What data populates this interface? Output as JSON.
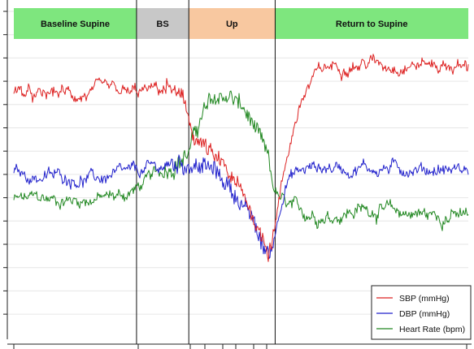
{
  "chart_data": {
    "type": "line",
    "title": "",
    "xlabel": "",
    "ylabel": "",
    "xlim": [
      0,
      100
    ],
    "ylim": [
      30,
      175
    ],
    "grid": true,
    "legend_position": "bottom-right",
    "phases": [
      {
        "label": "Baseline Supine",
        "start": 0,
        "end": 27,
        "color": "#7ee67e"
      },
      {
        "label": "BS",
        "start": 27,
        "end": 38.5,
        "color": "#c8c8c8"
      },
      {
        "label": "Up",
        "start": 38.5,
        "end": 57.5,
        "color": "#f8c8a0"
      },
      {
        "label": "Return to Supine",
        "start": 57.5,
        "end": 100,
        "color": "#7ee67e"
      }
    ],
    "phase_boundaries": [
      27,
      38.5,
      57.5
    ],
    "series": [
      {
        "name": "SBP (mmHg)",
        "color": "#dd2222",
        "x": [
          0,
          5,
          10,
          15,
          20,
          25,
          28,
          31,
          34,
          36,
          37.5,
          38.5,
          40,
          42,
          44,
          46,
          48,
          50,
          52,
          53.5,
          55,
          56,
          57,
          58,
          59,
          60,
          62,
          64,
          66,
          68,
          70,
          72,
          74,
          76,
          78,
          80,
          85,
          90,
          95,
          100
        ],
        "values": [
          150,
          146,
          149,
          147,
          150,
          148,
          149,
          150,
          151,
          148,
          142,
          135,
          126,
          122,
          116,
          112,
          106,
          99,
          92,
          84,
          76,
          72,
          80,
          92,
          104,
          116,
          136,
          148,
          156,
          160,
          162,
          162,
          163,
          162,
          164,
          163,
          162,
          163,
          162,
          161
        ]
      },
      {
        "name": "DBP (mmHg)",
        "color": "#2222cc",
        "x": [
          0,
          5,
          10,
          15,
          20,
          25,
          28,
          31,
          34,
          36,
          38.5,
          40,
          42,
          44,
          46,
          48,
          50,
          52,
          53.5,
          55,
          56,
          57,
          58,
          59,
          60,
          62,
          64,
          66,
          68,
          70,
          72,
          74,
          76,
          78,
          80,
          85,
          90,
          95,
          100
        ],
        "values": [
          109,
          107,
          108,
          106,
          107,
          109,
          110,
          112,
          113,
          114,
          114,
          113,
          112,
          110,
          106,
          101,
          95,
          88,
          80,
          72,
          69,
          74,
          86,
          98,
          106,
          109,
          111,
          112,
          112,
          112,
          112,
          111,
          112,
          112,
          111,
          112,
          111,
          111,
          111
        ]
      },
      {
        "name": "Heart Rate (bpm)",
        "color": "#228822",
        "x": [
          0,
          5,
          10,
          15,
          20,
          25,
          28,
          31,
          34,
          36,
          38.5,
          40,
          42,
          44,
          46,
          48,
          50,
          52,
          54,
          56,
          57,
          58,
          59,
          60,
          62,
          64,
          66,
          68,
          70,
          72,
          74,
          76,
          78,
          80,
          85,
          90,
          95,
          100
        ],
        "values": [
          96,
          97,
          96,
          96,
          97,
          99,
          103,
          108,
          112,
          115,
          119,
          130,
          140,
          145,
          147,
          146,
          142,
          135,
          126,
          115,
          103,
          98,
          95,
          93,
          91,
          90,
          89,
          88,
          88,
          89,
          90,
          91,
          92,
          91,
          90,
          89,
          88,
          88
        ]
      }
    ]
  }
}
